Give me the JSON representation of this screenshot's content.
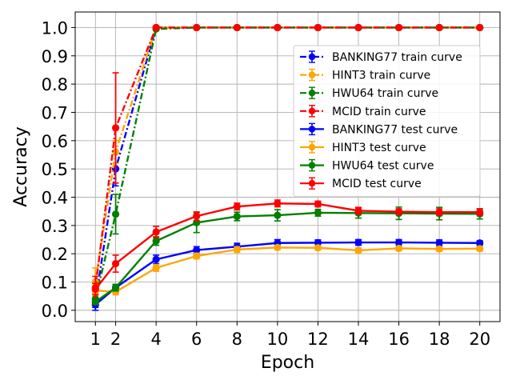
{
  "chart_data": {
    "type": "line",
    "title": "",
    "xlabel": "Epoch",
    "ylabel": "Accuracy",
    "xlim": [
      0,
      21
    ],
    "ylim": [
      -0.04,
      1.055
    ],
    "xticks": [
      1,
      2,
      4,
      6,
      8,
      10,
      12,
      14,
      16,
      18,
      20
    ],
    "yticks": [
      0.0,
      0.1,
      0.2,
      0.3,
      0.4,
      0.5,
      0.6,
      0.7,
      0.8,
      0.9,
      1.0
    ],
    "x": [
      1,
      2,
      4,
      6,
      8,
      10,
      12,
      14,
      16,
      18,
      20
    ],
    "grid": true,
    "legend_position": "upper right",
    "series": [
      {
        "name": "BANKING77 train curve",
        "color": "#0000ff",
        "style": "dashdot",
        "values": [
          0.03,
          0.5,
          1.0,
          1.0,
          1.0,
          1.0,
          1.0,
          1.0,
          1.0,
          1.0,
          1.0
        ],
        "errors": [
          0.03,
          0.06,
          0.003,
          0,
          0,
          0,
          0,
          0,
          0,
          0,
          0
        ]
      },
      {
        "name": "HINT3 train curve",
        "color": "#ffa500",
        "style": "dashdot",
        "values": [
          0.1,
          0.56,
          1.0,
          1.0,
          1.0,
          1.0,
          1.0,
          1.0,
          1.0,
          1.0,
          1.0
        ],
        "errors": [
          0.05,
          0.04,
          0.003,
          0,
          0,
          0,
          0,
          0,
          0,
          0,
          0
        ]
      },
      {
        "name": "HWU64 train curve",
        "color": "#008000",
        "style": "dashdot",
        "values": [
          0.04,
          0.34,
          0.995,
          1.0,
          1.0,
          1.0,
          1.0,
          1.0,
          1.0,
          1.0,
          1.0
        ],
        "errors": [
          0.02,
          0.07,
          0.005,
          0,
          0,
          0,
          0,
          0,
          0,
          0,
          0
        ]
      },
      {
        "name": "MCID train curve",
        "color": "#ff0000",
        "style": "dashdot",
        "values": [
          0.08,
          0.645,
          1.0,
          1.0,
          1.0,
          1.0,
          1.0,
          1.0,
          1.0,
          1.0,
          1.0
        ],
        "errors": [
          0.04,
          0.195,
          0.003,
          0,
          0,
          0,
          0,
          0,
          0,
          0,
          0
        ]
      },
      {
        "name": "BANKING77 test curve",
        "color": "#0000ff",
        "style": "solid",
        "values": [
          0.02,
          0.08,
          0.18,
          0.213,
          0.225,
          0.238,
          0.239,
          0.24,
          0.24,
          0.239,
          0.238
        ],
        "errors": [
          0.01,
          0.01,
          0.015,
          0.012,
          0.012,
          0.012,
          0.01,
          0.01,
          0.01,
          0.01,
          0.008
        ]
      },
      {
        "name": "HINT3 test curve",
        "color": "#ffa500",
        "style": "solid",
        "values": [
          0.07,
          0.065,
          0.15,
          0.192,
          0.215,
          0.222,
          0.221,
          0.212,
          0.219,
          0.217,
          0.218
        ],
        "errors": [
          0.01,
          0.01,
          0.012,
          0.01,
          0.01,
          0.008,
          0.008,
          0.008,
          0.008,
          0.008,
          0.008
        ]
      },
      {
        "name": "HWU64 test curve",
        "color": "#008000",
        "style": "solid",
        "values": [
          0.03,
          0.08,
          0.245,
          0.31,
          0.332,
          0.336,
          0.345,
          0.344,
          0.343,
          0.342,
          0.341
        ],
        "errors": [
          0.01,
          0.012,
          0.015,
          0.035,
          0.015,
          0.02,
          0.012,
          0.018,
          0.022,
          0.022,
          0.018
        ]
      },
      {
        "name": "MCID test curve",
        "color": "#ff0000",
        "style": "solid",
        "values": [
          0.075,
          0.165,
          0.277,
          0.333,
          0.367,
          0.378,
          0.376,
          0.352,
          0.349,
          0.347,
          0.347
        ],
        "errors": [
          0.02,
          0.03,
          0.02,
          0.015,
          0.012,
          0.012,
          0.01,
          0.012,
          0.01,
          0.012,
          0.012
        ]
      }
    ]
  }
}
